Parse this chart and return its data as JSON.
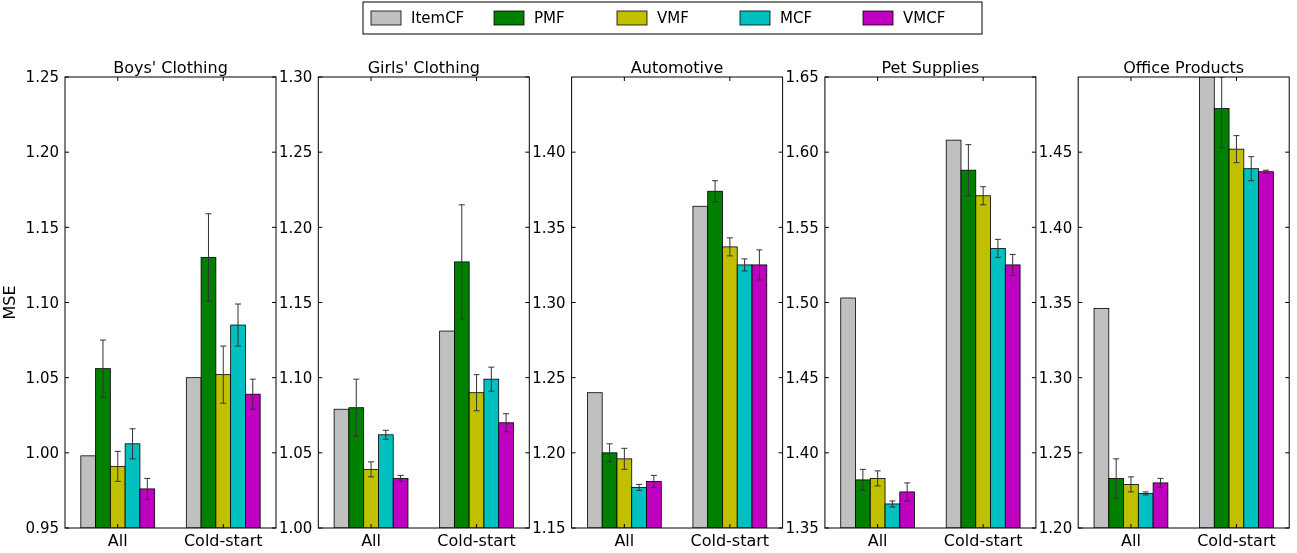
{
  "chart_data": [
    {
      "type": "bar",
      "title": "Boys' Clothing",
      "ylabel": "MSE",
      "categories": [
        "All",
        "Cold-start"
      ],
      "ylim": [
        0.95,
        1.25
      ],
      "yticks": [
        0.95,
        {
          "value": 1.0,
          "label": "1.00"
        },
        1.05,
        {
          "value": 1.1,
          "label": "1.10"
        },
        1.15,
        {
          "value": 1.2,
          "label": "1.20"
        },
        1.25
      ],
      "legend": "top",
      "series": [
        {
          "name": "ItemCF",
          "color": "#c0c0c0",
          "values": [
            0.998,
            1.05
          ]
        },
        {
          "name": "PMF",
          "color": "#008000",
          "values": [
            1.056,
            1.13
          ],
          "errors": [
            0.019,
            0.029
          ]
        },
        {
          "name": "VMF",
          "color": "#c0c000",
          "values": [
            0.991,
            1.052
          ],
          "errors": [
            0.01,
            0.019
          ]
        },
        {
          "name": "MCF",
          "color": "#00c0c0",
          "values": [
            1.006,
            1.085
          ],
          "errors": [
            0.01,
            0.014
          ]
        },
        {
          "name": "VMCF",
          "color": "#c000c0",
          "values": [
            0.976,
            1.039
          ],
          "errors": [
            0.007,
            0.01
          ]
        }
      ]
    },
    {
      "type": "bar",
      "title": "Girls' Clothing",
      "categories": [
        "All",
        "Cold-start"
      ],
      "ylim": [
        1.0,
        1.3
      ],
      "yticks": [
        {
          "value": 1.0,
          "label": "1.00"
        },
        1.05,
        {
          "value": 1.1,
          "label": "1.10"
        },
        1.15,
        {
          "value": 1.2,
          "label": "1.20"
        },
        1.25,
        {
          "value": 1.3,
          "label": "1.30"
        }
      ],
      "series": [
        {
          "color": "#c0c0c0",
          "values": [
            1.079,
            1.131
          ]
        },
        {
          "color": "#008000",
          "values": [
            1.08,
            1.177
          ],
          "errors": [
            0.019,
            0.038
          ]
        },
        {
          "color": "#c0c000",
          "values": [
            1.039,
            1.09
          ],
          "errors": [
            0.005,
            0.012
          ]
        },
        {
          "color": "#00c0c0",
          "values": [
            1.062,
            1.099
          ],
          "errors": [
            0.003,
            0.008
          ]
        },
        {
          "color": "#c000c0",
          "values": [
            1.033,
            1.07
          ],
          "errors": [
            0.002,
            0.006
          ]
        }
      ]
    },
    {
      "type": "bar",
      "title": "Automotive",
      "categories": [
        "All",
        "Cold-start"
      ],
      "ylim": [
        1.15,
        1.45
      ],
      "yticks": [
        1.15,
        {
          "value": 1.2,
          "label": "1.20"
        },
        1.25,
        {
          "value": 1.3,
          "label": "1.30"
        },
        1.35,
        {
          "value": 1.4,
          "label": "1.40"
        }
      ],
      "series": [
        {
          "color": "#c0c0c0",
          "values": [
            1.24,
            1.364
          ]
        },
        {
          "color": "#008000",
          "values": [
            1.2,
            1.374
          ],
          "errors": [
            0.006,
            0.007
          ]
        },
        {
          "color": "#c0c000",
          "values": [
            1.196,
            1.337
          ],
          "errors": [
            0.007,
            0.006
          ]
        },
        {
          "color": "#00c0c0",
          "values": [
            1.177,
            1.325
          ],
          "errors": [
            0.002,
            0.004
          ]
        },
        {
          "color": "#c000c0",
          "values": [
            1.181,
            1.325
          ],
          "errors": [
            0.004,
            0.01
          ]
        }
      ]
    },
    {
      "type": "bar",
      "title": "Pet Supplies",
      "categories": [
        "All",
        "Cold-start"
      ],
      "ylim": [
        1.35,
        1.65
      ],
      "yticks": [
        1.35,
        {
          "value": 1.4,
          "label": "1.40"
        },
        1.45,
        {
          "value": 1.5,
          "label": "1.50"
        },
        1.55,
        {
          "value": 1.6,
          "label": "1.60"
        },
        1.65
      ],
      "series": [
        {
          "color": "#c0c0c0",
          "values": [
            1.503,
            1.608
          ]
        },
        {
          "color": "#008000",
          "values": [
            1.382,
            1.588
          ],
          "errors": [
            0.007,
            0.017
          ]
        },
        {
          "color": "#c0c000",
          "values": [
            1.383,
            1.571
          ],
          "errors": [
            0.005,
            0.006
          ]
        },
        {
          "color": "#00c0c0",
          "values": [
            1.366,
            1.536
          ],
          "errors": [
            0.002,
            0.006
          ]
        },
        {
          "color": "#c000c0",
          "values": [
            1.374,
            1.525
          ],
          "errors": [
            0.006,
            0.007
          ]
        }
      ]
    },
    {
      "type": "bar",
      "title": "Office Products",
      "categories": [
        "All",
        "Cold-start"
      ],
      "ylim": [
        1.2,
        1.5
      ],
      "yticks": [
        {
          "value": 1.2,
          "label": "1.20"
        },
        1.25,
        {
          "value": 1.3,
          "label": "1.30"
        },
        1.35,
        {
          "value": 1.4,
          "label": "1.40"
        },
        1.45
      ],
      "series": [
        {
          "color": "#c0c0c0",
          "values": [
            1.346,
            1.5
          ]
        },
        {
          "color": "#008000",
          "values": [
            1.233,
            1.479
          ],
          "errors": [
            0.013,
            [
              1.453,
              1.5
            ]
          ]
        },
        {
          "color": "#c0c000",
          "values": [
            1.229,
            1.452
          ],
          "errors": [
            0.005,
            0.009
          ]
        },
        {
          "color": "#00c0c0",
          "values": [
            1.223,
            1.439
          ],
          "errors": [
            0.001,
            0.008
          ]
        },
        {
          "color": "#c000c0",
          "values": [
            1.23,
            1.437
          ],
          "errors": [
            0.003,
            0.001
          ]
        }
      ]
    }
  ]
}
